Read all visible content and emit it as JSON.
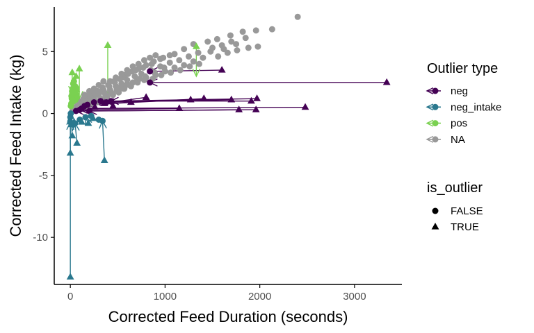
{
  "chart_data": {
    "type": "scatter",
    "title": "",
    "xlabel": "Corrected Feed Duration (seconds)",
    "ylabel": "Corrected Feed Intake (kg)",
    "xlim": [
      -170,
      3500
    ],
    "ylim": [
      -13.8,
      8.6
    ],
    "x_ticks": [
      0,
      1000,
      2000,
      3000
    ],
    "y_ticks": [
      -10,
      -5,
      0,
      5
    ],
    "grid": false,
    "legend_placement": "right",
    "colors": {
      "neg": "#440154",
      "neg_intake": "#2a788e",
      "pos": "#7ad151",
      "NA": "#999999"
    },
    "legend_color": {
      "title": "Outlier type",
      "entries": [
        {
          "key": "neg",
          "label": "neg"
        },
        {
          "key": "neg_intake",
          "label": "neg_intake"
        },
        {
          "key": "pos",
          "label": "pos"
        },
        {
          "key": "NA",
          "label": "NA"
        }
      ]
    },
    "legend_shape": {
      "title": "is_outlier",
      "entries": [
        {
          "shape": "circle",
          "label": "FALSE"
        },
        {
          "shape": "triangle",
          "label": "TRUE"
        }
      ]
    },
    "series": [
      {
        "key": "NA",
        "is_outlier": "FALSE",
        "points": [
          [
            2400,
            7.8
          ],
          [
            2130,
            6.8
          ],
          [
            1960,
            6.7
          ],
          [
            1820,
            6.6
          ],
          [
            1690,
            6.3
          ],
          [
            1550,
            6.0
          ],
          [
            1980,
            5.4
          ],
          [
            1750,
            5.6
          ],
          [
            1620,
            5.2
          ],
          [
            1480,
            5.0
          ],
          [
            1350,
            4.9
          ],
          [
            1250,
            4.6
          ],
          [
            1150,
            4.3
          ],
          [
            1050,
            4.1
          ],
          [
            950,
            3.8
          ],
          [
            850,
            3.5
          ],
          [
            750,
            3.2
          ],
          [
            680,
            3.0
          ],
          [
            600,
            2.7
          ],
          [
            540,
            2.4
          ],
          [
            480,
            2.2
          ],
          [
            420,
            1.9
          ],
          [
            360,
            1.7
          ],
          [
            300,
            1.5
          ],
          [
            250,
            1.3
          ],
          [
            200,
            1.1
          ],
          [
            150,
            0.9
          ],
          [
            100,
            0.7
          ],
          [
            60,
            0.5
          ],
          [
            30,
            0.3
          ],
          [
            1100,
            4.8
          ],
          [
            980,
            4.5
          ],
          [
            880,
            4.2
          ],
          [
            800,
            3.9
          ],
          [
            720,
            3.6
          ],
          [
            650,
            3.4
          ],
          [
            580,
            3.1
          ],
          [
            520,
            2.8
          ],
          [
            460,
            2.6
          ],
          [
            400,
            2.3
          ],
          [
            340,
            2.1
          ],
          [
            290,
            1.8
          ],
          [
            240,
            1.6
          ],
          [
            190,
            1.4
          ],
          [
            140,
            1.2
          ],
          [
            90,
            1.0
          ],
          [
            1400,
            4.5
          ],
          [
            1300,
            4.2
          ],
          [
            1200,
            3.9
          ],
          [
            1100,
            3.7
          ],
          [
            1000,
            3.4
          ],
          [
            900,
            3.1
          ],
          [
            800,
            2.9
          ],
          [
            700,
            2.6
          ],
          [
            620,
            2.3
          ],
          [
            560,
            2.0
          ],
          [
            500,
            1.8
          ],
          [
            440,
            1.6
          ],
          [
            380,
            1.4
          ],
          [
            320,
            1.2
          ],
          [
            270,
            1.0
          ],
          [
            220,
            0.9
          ],
          [
            170,
            0.7
          ],
          [
            120,
            0.6
          ],
          [
            1600,
            5.5
          ],
          [
            1500,
            5.3
          ],
          [
            1700,
            5.8
          ],
          [
            1850,
            6.1
          ],
          [
            1300,
            5.6
          ],
          [
            1450,
            5.8
          ],
          [
            1200,
            5.2
          ],
          [
            1050,
            4.7
          ],
          [
            950,
            4.4
          ],
          [
            860,
            4.0
          ],
          [
            770,
            3.7
          ],
          [
            690,
            3.5
          ],
          [
            610,
            3.2
          ],
          [
            550,
            2.9
          ],
          [
            470,
            2.5
          ],
          [
            410,
            2.2
          ],
          [
            350,
            1.9
          ],
          [
            310,
            1.7
          ],
          [
            260,
            1.5
          ],
          [
            210,
            1.3
          ],
          [
            160,
            1.0
          ],
          [
            110,
            0.8
          ],
          [
            70,
            0.6
          ],
          [
            40,
            0.4
          ],
          [
            20,
            0.2
          ],
          [
            80,
            0.4
          ],
          [
            130,
            0.5
          ],
          [
            180,
            0.6
          ],
          [
            230,
            0.8
          ],
          [
            280,
            0.9
          ],
          [
            330,
            1.1
          ],
          [
            390,
            1.3
          ],
          [
            450,
            1.5
          ],
          [
            510,
            1.7
          ],
          [
            570,
            2.0
          ],
          [
            640,
            2.2
          ],
          [
            710,
            2.5
          ],
          [
            780,
            2.7
          ],
          [
            870,
            2.8
          ],
          [
            960,
            3.1
          ],
          [
            1060,
            3.3
          ],
          [
            1160,
            3.5
          ],
          [
            1260,
            3.8
          ],
          [
            1360,
            4.0
          ],
          [
            1560,
            4.6
          ],
          [
            1660,
            4.9
          ],
          [
            1760,
            5.1
          ],
          [
            1880,
            5.3
          ],
          [
            990,
            3.7
          ],
          [
            890,
            3.3
          ],
          [
            790,
            3.0
          ],
          [
            730,
            2.8
          ],
          [
            660,
            2.5
          ],
          [
            590,
            2.3
          ],
          [
            530,
            2.1
          ],
          [
            490,
            1.9
          ],
          [
            430,
            1.7
          ],
          [
            370,
            1.5
          ],
          [
            420,
            2.6
          ],
          [
            480,
            2.9
          ],
          [
            540,
            3.2
          ],
          [
            600,
            3.5
          ],
          [
            660,
            3.8
          ],
          [
            720,
            4.0
          ],
          [
            780,
            4.3
          ],
          [
            840,
            4.5
          ],
          [
            900,
            4.7
          ],
          [
            300,
            2.3
          ],
          [
            250,
            2.0
          ],
          [
            200,
            1.8
          ],
          [
            150,
            1.5
          ],
          [
            350,
            2.6
          ]
        ]
      },
      {
        "key": "pos",
        "is_outlier": "FALSE",
        "points": [
          [
            10,
            0.8
          ],
          [
            15,
            1.2
          ],
          [
            20,
            1.6
          ],
          [
            25,
            2.0
          ],
          [
            30,
            2.4
          ],
          [
            35,
            1.0
          ],
          [
            40,
            1.4
          ],
          [
            45,
            1.8
          ],
          [
            50,
            2.2
          ],
          [
            55,
            1.1
          ],
          [
            60,
            1.5
          ],
          [
            65,
            1.9
          ],
          [
            70,
            1.3
          ],
          [
            5,
            0.6
          ],
          [
            12,
            1.4
          ],
          [
            18,
            1.8
          ],
          [
            28,
            1.1
          ],
          [
            38,
            2.6
          ],
          [
            48,
            1.7
          ],
          [
            58,
            2.1
          ]
        ]
      },
      {
        "key": "pos",
        "is_outlier": "TRUE",
        "points": [
          [
            1330,
            5.4
          ],
          [
            395,
            5.5
          ],
          [
            20,
            3.3
          ],
          [
            95,
            3.6
          ],
          [
            60,
            3.0
          ]
        ]
      },
      {
        "key": "neg",
        "is_outlier": "FALSE",
        "points": [
          [
            840,
            3.4
          ],
          [
            840,
            2.5
          ],
          [
            430,
            1.0
          ],
          [
            320,
            1.0
          ],
          [
            250,
            0.9
          ],
          [
            180,
            0.7
          ],
          [
            120,
            0.4
          ],
          [
            60,
            0.2
          ],
          [
            200,
            0.2
          ],
          [
            380,
            0.9
          ],
          [
            100,
            0.3
          ],
          [
            150,
            0.6
          ]
        ]
      },
      {
        "key": "neg",
        "is_outlier": "TRUE",
        "points": [
          [
            3340,
            2.5
          ],
          [
            1600,
            3.5
          ],
          [
            2480,
            0.5
          ],
          [
            1970,
            1.2
          ],
          [
            1910,
            1.0
          ],
          [
            1700,
            1.1
          ],
          [
            1410,
            1.2
          ],
          [
            1270,
            1.1
          ],
          [
            1780,
            0.3
          ],
          [
            1960,
            0.3
          ],
          [
            1150,
            0.4
          ],
          [
            800,
            1.3
          ],
          [
            640,
            0.9
          ],
          [
            450,
            0.6
          ],
          [
            360,
            0.8
          ],
          [
            260,
            0.5
          ]
        ]
      },
      {
        "key": "neg_intake",
        "is_outlier": "FALSE",
        "points": [
          [
            0,
            -0.3
          ],
          [
            0,
            -0.7
          ],
          [
            5,
            0.0
          ],
          [
            50,
            -0.8
          ],
          [
            100,
            -0.5
          ],
          [
            160,
            -0.3
          ],
          [
            220,
            -0.2
          ],
          [
            300,
            -0.5
          ],
          [
            340,
            -0.6
          ],
          [
            30,
            -0.9
          ]
        ]
      },
      {
        "key": "neg_intake",
        "is_outlier": "TRUE",
        "points": [
          [
            0,
            -13.2
          ],
          [
            0,
            -3.2
          ],
          [
            20,
            -1.8
          ],
          [
            70,
            -2.4
          ],
          [
            360,
            -3.8
          ],
          [
            190,
            -0.8
          ],
          [
            120,
            -0.7
          ],
          [
            240,
            -0.4
          ],
          [
            10,
            -0.9
          ],
          [
            40,
            -0.7
          ]
        ]
      }
    ],
    "arrows": [
      {
        "key": "neg",
        "from": [
          840,
          3.4
        ],
        "to": [
          1600,
          3.5
        ]
      },
      {
        "key": "neg",
        "from": [
          840,
          2.5
        ],
        "to": [
          3340,
          2.5
        ]
      },
      {
        "key": "neg",
        "from": [
          430,
          1.0
        ],
        "to": [
          1970,
          1.2
        ]
      },
      {
        "key": "neg",
        "from": [
          320,
          1.0
        ],
        "to": [
          1910,
          1.0
        ]
      },
      {
        "key": "neg",
        "from": [
          250,
          0.9
        ],
        "to": [
          1700,
          1.1
        ]
      },
      {
        "key": "neg",
        "from": [
          180,
          0.7
        ],
        "to": [
          1410,
          1.2
        ]
      },
      {
        "key": "neg",
        "from": [
          120,
          0.4
        ],
        "to": [
          2480,
          0.5
        ]
      },
      {
        "key": "neg",
        "from": [
          60,
          0.2
        ],
        "to": [
          1960,
          0.3
        ]
      },
      {
        "key": "neg",
        "from": [
          200,
          0.2
        ],
        "to": [
          1780,
          0.3
        ]
      },
      {
        "key": "neg",
        "from": [
          380,
          0.9
        ],
        "to": [
          1270,
          1.1
        ]
      },
      {
        "key": "neg",
        "from": [
          100,
          0.3
        ],
        "to": [
          1150,
          0.4
        ]
      },
      {
        "key": "neg",
        "from": [
          150,
          0.6
        ],
        "to": [
          800,
          1.3
        ]
      },
      {
        "key": "neg_intake",
        "from": [
          0,
          -0.3
        ],
        "to": [
          0,
          -13.2
        ]
      },
      {
        "key": "neg_intake",
        "from": [
          0,
          -0.7
        ],
        "to": [
          0,
          -3.2
        ]
      },
      {
        "key": "neg_intake",
        "from": [
          5,
          0.0
        ],
        "to": [
          20,
          -1.8
        ]
      },
      {
        "key": "neg_intake",
        "from": [
          50,
          -0.8
        ],
        "to": [
          70,
          -2.4
        ]
      },
      {
        "key": "neg_intake",
        "from": [
          340,
          -0.6
        ],
        "to": [
          360,
          -3.8
        ]
      },
      {
        "key": "neg_intake",
        "from": [
          160,
          -0.3
        ],
        "to": [
          190,
          -0.8
        ]
      },
      {
        "key": "pos",
        "from": [
          1330,
          3.0
        ],
        "to": [
          1330,
          5.4
        ]
      },
      {
        "key": "pos",
        "from": [
          395,
          1.5
        ],
        "to": [
          395,
          5.5
        ]
      },
      {
        "key": "pos",
        "from": [
          20,
          1.6
        ],
        "to": [
          20,
          3.3
        ]
      },
      {
        "key": "pos",
        "from": [
          95,
          1.2
        ],
        "to": [
          95,
          3.6
        ]
      },
      {
        "key": "pos",
        "from": [
          60,
          1.2
        ],
        "to": [
          60,
          3.0
        ]
      }
    ]
  }
}
